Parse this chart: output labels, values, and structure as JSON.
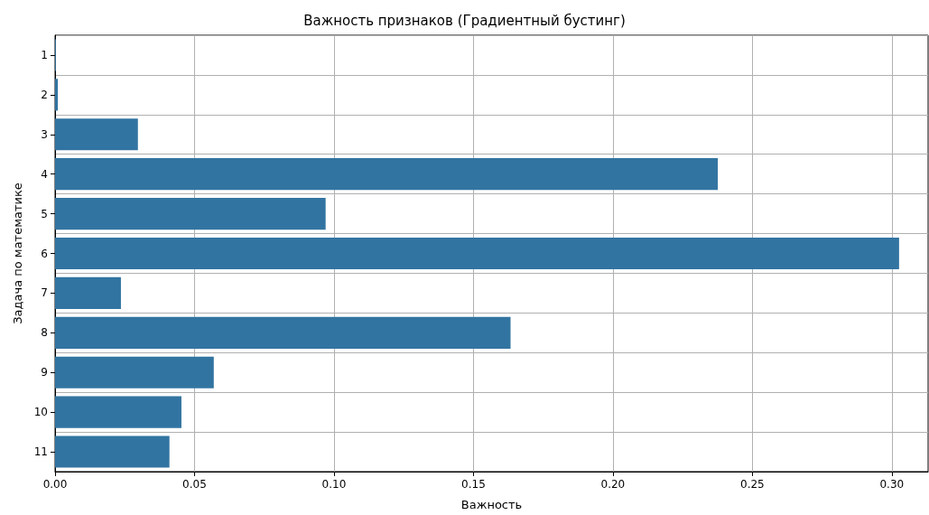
{
  "chart_data": {
    "type": "bar",
    "orientation": "horizontal",
    "title": "Важность признаков (Градиентный бустинг)",
    "xlabel": "Важность",
    "ylabel": "Задача по математике",
    "categories": [
      "1",
      "2",
      "3",
      "4",
      "5",
      "6",
      "7",
      "8",
      "9",
      "10",
      "11"
    ],
    "values": [
      0.0003,
      0.001,
      0.0297,
      0.2376,
      0.097,
      0.3026,
      0.0236,
      0.1633,
      0.0569,
      0.0453,
      0.041
    ],
    "color": "#3274a1",
    "xlim": [
      0,
      0.313
    ],
    "xticks": [
      {
        "value": 0,
        "label": "0.00"
      },
      {
        "value": 0.05,
        "label": "0.05"
      },
      {
        "value": 0.1,
        "label": "0.10"
      },
      {
        "value": 0.15,
        "label": "0.15"
      },
      {
        "value": 0.2,
        "label": "0.20"
      },
      {
        "value": 0.25,
        "label": "0.25"
      },
      {
        "value": 0.3,
        "label": "0.30"
      }
    ],
    "grid": true
  }
}
